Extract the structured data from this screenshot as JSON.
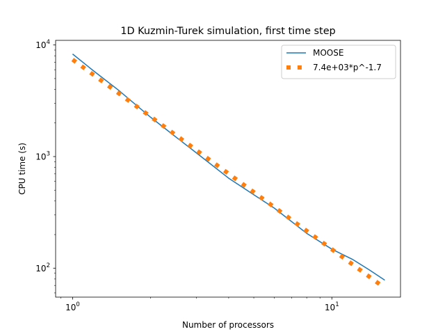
{
  "chart_data": {
    "type": "line",
    "title": "1D Kuzmin-Turek simulation, first time step",
    "xlabel": "Number of processors",
    "ylabel": "CPU time (s)",
    "xscale": "log",
    "yscale": "log",
    "xlim": [
      0.86,
      18.4
    ],
    "ylim": [
      55,
      11000
    ],
    "x_ticks": [
      {
        "value": 1,
        "base": "10",
        "exp": "0"
      },
      {
        "value": 10,
        "base": "10",
        "exp": "1"
      }
    ],
    "y_ticks": [
      {
        "value": 100,
        "base": "10",
        "exp": "2"
      },
      {
        "value": 1000,
        "base": "10",
        "exp": "3"
      },
      {
        "value": 10000,
        "base": "10",
        "exp": "4"
      }
    ],
    "grid": false,
    "legend_position": "top-right",
    "series": [
      {
        "name": "MOOSE",
        "style": "solid",
        "color": "#1f77b4",
        "x": [
          1,
          1.2,
          1.5,
          2,
          2.5,
          3,
          4,
          5,
          6,
          8,
          10,
          12,
          14,
          16
        ],
        "y": [
          8300,
          5900,
          3950,
          2250,
          1500,
          1080,
          640,
          455,
          345,
          205,
          148,
          120,
          96,
          78
        ]
      },
      {
        "name": "7.4e+03*p^-1.7",
        "style": "dotted",
        "color": "#ff7f0e",
        "formula": {
          "a": 7400,
          "b": -1.7
        },
        "x_range": [
          1,
          16
        ]
      }
    ]
  }
}
